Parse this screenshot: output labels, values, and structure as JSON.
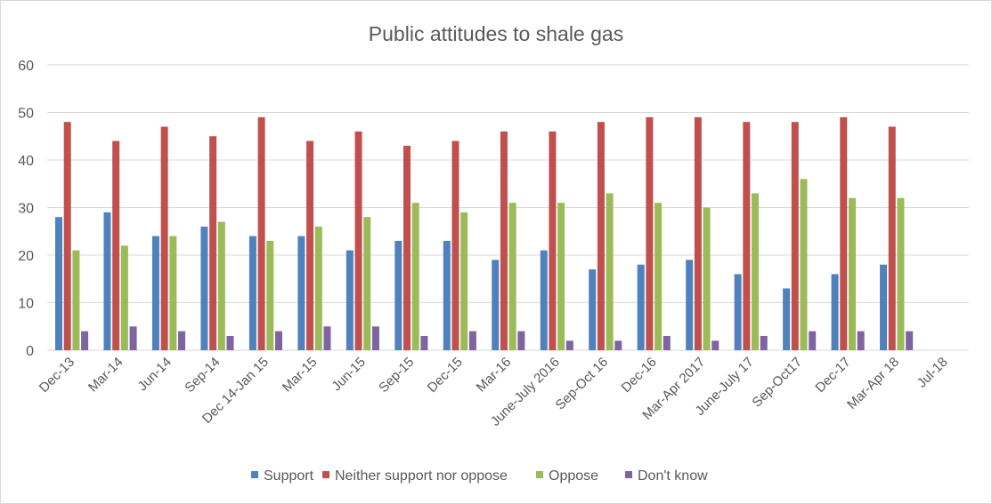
{
  "chart_data": {
    "type": "bar",
    "title": "Public attitudes to shale gas",
    "xlabel": "",
    "ylabel": "",
    "ylim": [
      0,
      60
    ],
    "yticks": [
      0,
      10,
      20,
      30,
      40,
      50,
      60
    ],
    "grid": true,
    "legend_position": "bottom",
    "categories": [
      "Dec-13",
      "Mar-14",
      "Jun-14",
      "Sep-14",
      "Dec 14-Jan 15",
      "Mar-15",
      "Jun-15",
      "Sep-15",
      "Dec-15",
      "Mar-16",
      "June-July 2016",
      "Sep-Oct 16",
      "Dec-16",
      "Mar-Apr 2017",
      "June-July 17",
      "Sep-Oct17",
      "Dec-17",
      "Mar-Apr 18",
      "Jul-18"
    ],
    "series": [
      {
        "name": "Support",
        "color": "#4F81BD",
        "values": [
          28,
          29,
          24,
          26,
          24,
          24,
          21,
          23,
          23,
          19,
          21,
          17,
          18,
          19,
          16,
          13,
          16,
          18,
          null
        ]
      },
      {
        "name": "Neither support nor oppose",
        "color": "#C0504D",
        "values": [
          48,
          44,
          47,
          45,
          49,
          44,
          46,
          43,
          44,
          46,
          46,
          48,
          49,
          49,
          48,
          48,
          49,
          47,
          null
        ]
      },
      {
        "name": "Oppose",
        "color": "#9BBB59",
        "values": [
          21,
          22,
          24,
          27,
          23,
          26,
          28,
          31,
          29,
          31,
          31,
          33,
          31,
          30,
          33,
          36,
          32,
          32,
          null
        ]
      },
      {
        "name": "Don't know",
        "color": "#8064A2",
        "values": [
          4,
          5,
          4,
          3,
          4,
          5,
          5,
          3,
          4,
          4,
          2,
          2,
          3,
          2,
          3,
          4,
          4,
          4,
          null
        ]
      }
    ]
  }
}
